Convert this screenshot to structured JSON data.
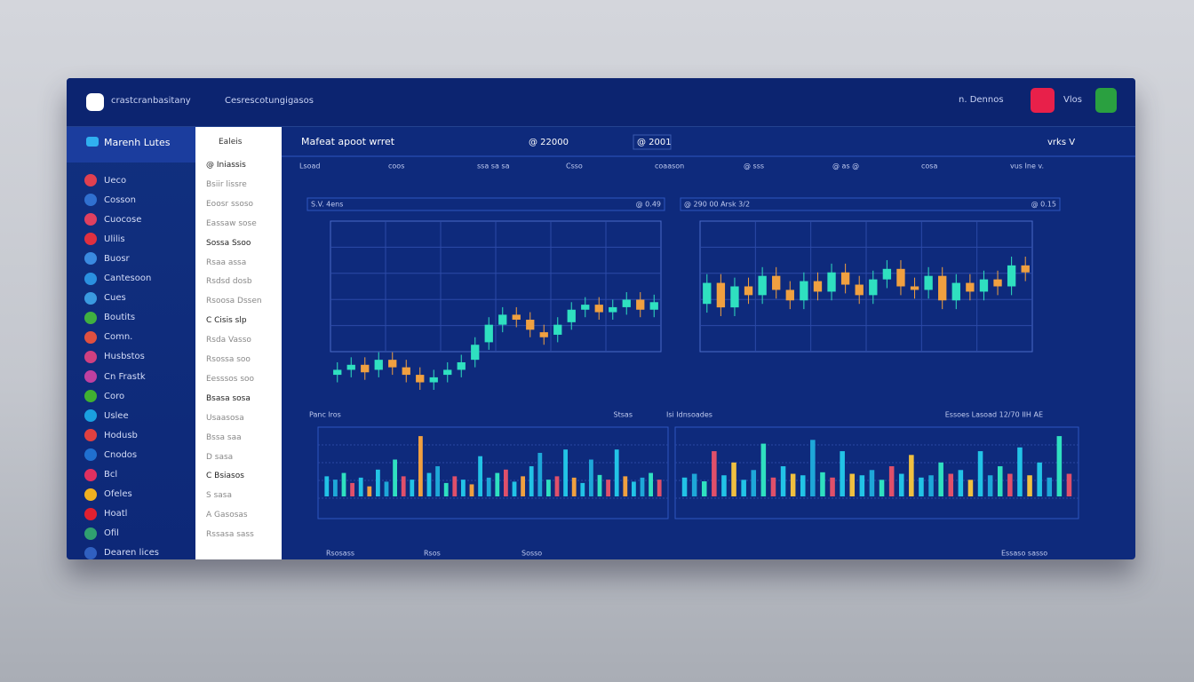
{
  "header": {
    "brand": "crastcranbasitany",
    "subtitle": "Cesrescotungigasos",
    "user": "n. Dennos",
    "badge": "Vlos"
  },
  "sidebar": {
    "title": "Marenh Lutes",
    "items": [
      "Ueco",
      "Cosson",
      "Cuocose",
      "Ulilis",
      "Buosr",
      "Cantesoon",
      "Cues",
      "Boutits",
      "Comn.",
      "Husbstos",
      "Cn Frastk",
      "Coro",
      "Uslee",
      "Hodusb",
      "Cnodos",
      "Bcl",
      "Ofeles",
      "Hoatl",
      "Ofil",
      "Dearen lices"
    ]
  },
  "list": {
    "title": "Ealeis",
    "items": [
      "@ Iniassis",
      "Bsiir lissre",
      "Eoosr ssoso",
      "Eassaw sose",
      "Sossa Ssoo",
      "Rsaa assa",
      "Rsdsd dosb",
      "Rsoosa Dssen",
      "C Cisis slp",
      "Rsda Vasso",
      "Rsossa soo",
      "Eesssos soo",
      "Bsasa sosa",
      "Usaasosa",
      "Bssa saa",
      "D sasa",
      "C Bsiasos",
      "S sasa",
      "A Gasosas",
      "Rssasa sass"
    ]
  },
  "toolbar": {
    "title": "Mafeat apoot wrret",
    "price": "@ 22000",
    "change": "@ 2001",
    "right": "vrks V",
    "sub": [
      "Lsoad",
      "coos",
      "ssa sa sa",
      "Csso",
      "coaason",
      "@ sss",
      "@ as @",
      "cosa",
      "vus Ine v."
    ]
  },
  "panels": [
    {
      "type": "candlestick",
      "label": "S.V. 4ens",
      "right": "@ 0.49",
      "up_color": "#2fe0c0",
      "down_color": "#f0a040",
      "open": [
        18,
        20,
        22,
        20,
        24,
        21,
        18,
        15,
        18,
        20,
        24,
        31,
        38,
        42,
        40,
        35,
        34,
        39,
        44,
        46,
        43,
        45,
        48,
        44
      ],
      "close": [
        20,
        22,
        19,
        24,
        21,
        18,
        15,
        17,
        20,
        23,
        30,
        38,
        42,
        40,
        36,
        33,
        38,
        44,
        46,
        43,
        45,
        48,
        44,
        47
      ],
      "high": [
        23,
        25,
        25,
        27,
        27,
        24,
        21,
        20,
        23,
        26,
        33,
        41,
        45,
        45,
        43,
        38,
        41,
        47,
        49,
        49,
        48,
        51,
        51,
        50
      ],
      "low": [
        15,
        17,
        16,
        17,
        18,
        15,
        12,
        12,
        15,
        17,
        21,
        28,
        35,
        37,
        33,
        30,
        31,
        36,
        41,
        40,
        40,
        42,
        41,
        41
      ]
    },
    {
      "type": "candlestick",
      "label": "@ 290 00 Arsk 3/2",
      "right": "@ 0.15",
      "up_color": "#2fe0c0",
      "down_color": "#f0a040",
      "open": [
        50,
        62,
        48,
        60,
        55,
        66,
        58,
        52,
        63,
        57,
        68,
        61,
        55,
        64,
        70,
        60,
        58,
        66,
        52,
        62,
        57,
        64,
        60,
        72
      ],
      "close": [
        62,
        48,
        60,
        55,
        66,
        58,
        52,
        63,
        57,
        68,
        61,
        55,
        64,
        70,
        60,
        58,
        66,
        52,
        62,
        57,
        64,
        60,
        72,
        68
      ],
      "high": [
        67,
        67,
        65,
        65,
        71,
        71,
        63,
        68,
        68,
        73,
        73,
        66,
        69,
        75,
        75,
        65,
        71,
        71,
        67,
        67,
        69,
        69,
        77,
        77
      ],
      "low": [
        45,
        43,
        43,
        50,
        50,
        53,
        47,
        47,
        52,
        52,
        56,
        50,
        50,
        59,
        55,
        53,
        53,
        47,
        47,
        52,
        52,
        55,
        55,
        63
      ]
    }
  ],
  "bars": [
    {
      "type": "bar",
      "label": "Panc lros",
      "right": "Stsas",
      "palette": [
        "#22c3e6",
        "#1ea7d8",
        "#2fe0c0",
        "#e0506a",
        "#22c3e6",
        "#f0a040"
      ],
      "values": [
        30,
        25,
        35,
        20,
        28,
        15,
        40,
        22,
        55,
        30,
        25,
        90,
        35,
        45,
        20,
        30,
        25,
        18,
        60,
        28,
        35,
        40,
        22,
        30,
        45,
        65,
        25,
        30,
        70,
        28,
        20,
        55,
        32,
        25,
        70,
        30,
        22,
        28,
        35,
        25
      ]
    },
    {
      "type": "bar",
      "label": "Isi Idnsoades",
      "right": "Essoes Lasoad 12/70 IIH AE",
      "palette": [
        "#22c3e6",
        "#1ea7d8",
        "#2fe0c0",
        "#e0506a",
        "#22c3e6",
        "#f0c040"
      ],
      "values": [
        25,
        30,
        20,
        60,
        28,
        45,
        22,
        35,
        70,
        25,
        40,
        30,
        28,
        75,
        32,
        25,
        60,
        30,
        28,
        35,
        22,
        40,
        30,
        55,
        25,
        28,
        45,
        30,
        35,
        22,
        60,
        28,
        40,
        30,
        65,
        28,
        45,
        25,
        80,
        30
      ]
    }
  ],
  "footer": [
    "Rsosass",
    "Rsos",
    "Sosso",
    "Essaso sasso"
  ]
}
